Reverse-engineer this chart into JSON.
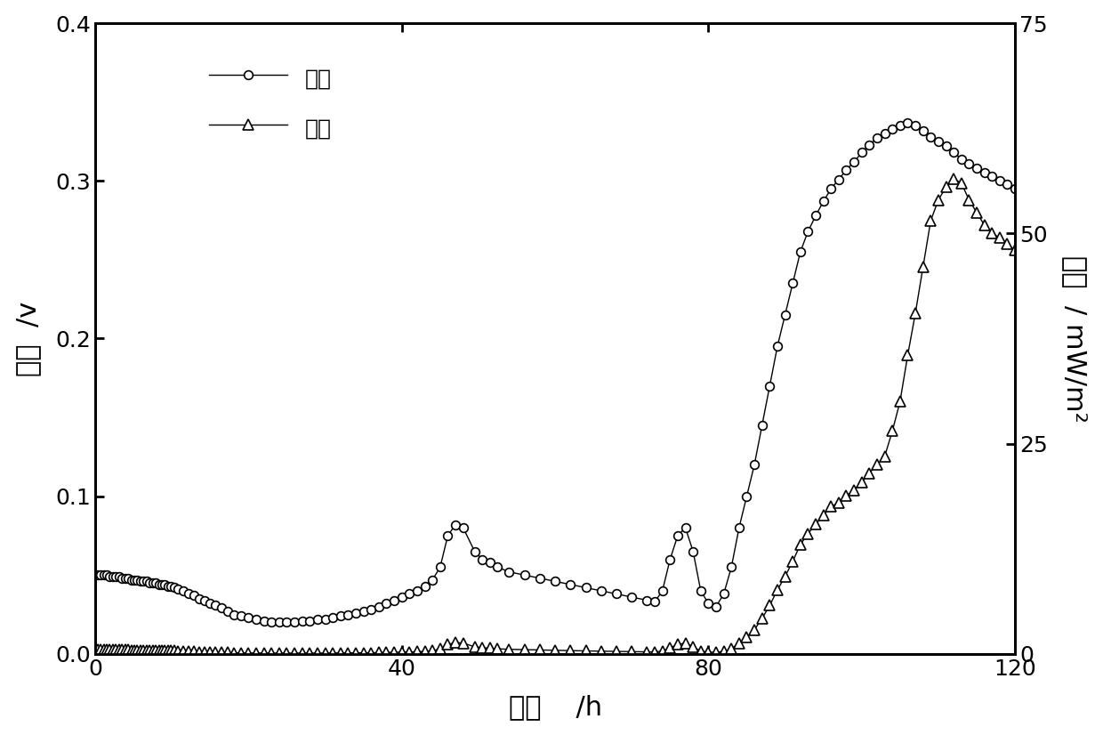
{
  "xlabel": "时间    /h",
  "ylabel_left": "电压  /v",
  "ylabel_right": "功率  / mW/m²",
  "legend_voltage": "电压",
  "legend_power": "功率",
  "xlim": [
    0,
    120
  ],
  "ylim_left": [
    0.0,
    0.4
  ],
  "ylim_right": [
    0,
    75
  ],
  "yticks_left": [
    0.0,
    0.1,
    0.2,
    0.3,
    0.4
  ],
  "yticks_right": [
    0,
    25,
    50,
    75
  ],
  "xticks": [
    0,
    40,
    80,
    120
  ],
  "voltage_time": [
    0.3,
    0.7,
    1.1,
    1.5,
    1.9,
    2.3,
    2.7,
    3.1,
    3.5,
    3.9,
    4.3,
    4.7,
    5.1,
    5.5,
    5.9,
    6.3,
    6.7,
    7.1,
    7.5,
    7.9,
    8.3,
    8.7,
    9.1,
    9.5,
    9.9,
    10.3,
    10.8,
    11.5,
    12.2,
    12.9,
    13.6,
    14.3,
    15.0,
    15.7,
    16.5,
    17.3,
    18.1,
    19.0,
    20.0,
    21.0,
    22.0,
    23.0,
    24.0,
    25.0,
    26.0,
    27.0,
    28.0,
    29.0,
    30.0,
    31.0,
    32.0,
    33.0,
    34.0,
    35.0,
    36.0,
    37.0,
    38.0,
    39.0,
    40.0,
    41.0,
    42.0,
    43.0,
    44.0,
    45.0,
    46.0,
    47.0,
    48.0,
    49.5,
    50.5,
    51.5,
    52.5,
    54.0,
    56.0,
    58.0,
    60.0,
    62.0,
    64.0,
    66.0,
    68.0,
    70.0,
    72.0,
    73.0,
    74.0,
    75.0,
    76.0,
    77.0,
    78.0,
    79.0,
    80.0,
    81.0,
    82.0,
    83.0,
    84.0,
    85.0,
    86.0,
    87.0,
    88.0,
    89.0,
    90.0,
    91.0,
    92.0,
    93.0,
    94.0,
    95.0,
    96.0,
    97.0,
    98.0,
    99.0,
    100.0,
    101.0,
    102.0,
    103.0,
    104.0,
    105.0,
    106.0,
    107.0,
    108.0,
    109.0,
    110.0,
    111.0,
    112.0,
    113.0,
    114.0,
    115.0,
    116.0,
    117.0,
    118.0,
    119.0,
    120.0
  ],
  "voltage_values": [
    0.05,
    0.05,
    0.05,
    0.05,
    0.049,
    0.049,
    0.049,
    0.049,
    0.048,
    0.048,
    0.048,
    0.047,
    0.047,
    0.047,
    0.046,
    0.046,
    0.046,
    0.045,
    0.045,
    0.045,
    0.044,
    0.044,
    0.044,
    0.043,
    0.043,
    0.042,
    0.041,
    0.04,
    0.038,
    0.037,
    0.035,
    0.034,
    0.032,
    0.031,
    0.029,
    0.027,
    0.025,
    0.024,
    0.023,
    0.022,
    0.021,
    0.02,
    0.02,
    0.02,
    0.02,
    0.021,
    0.021,
    0.022,
    0.022,
    0.023,
    0.024,
    0.025,
    0.026,
    0.027,
    0.028,
    0.03,
    0.032,
    0.034,
    0.036,
    0.038,
    0.04,
    0.043,
    0.047,
    0.055,
    0.075,
    0.082,
    0.08,
    0.065,
    0.06,
    0.058,
    0.055,
    0.052,
    0.05,
    0.048,
    0.046,
    0.044,
    0.042,
    0.04,
    0.038,
    0.036,
    0.034,
    0.033,
    0.04,
    0.06,
    0.075,
    0.08,
    0.065,
    0.04,
    0.032,
    0.03,
    0.038,
    0.055,
    0.08,
    0.1,
    0.12,
    0.145,
    0.17,
    0.195,
    0.215,
    0.235,
    0.255,
    0.268,
    0.278,
    0.287,
    0.295,
    0.301,
    0.307,
    0.312,
    0.318,
    0.323,
    0.327,
    0.33,
    0.333,
    0.335,
    0.337,
    0.335,
    0.332,
    0.328,
    0.325,
    0.322,
    0.318,
    0.314,
    0.311,
    0.308,
    0.305,
    0.303,
    0.3,
    0.298,
    0.295
  ],
  "power_time": [
    0.3,
    0.7,
    1.1,
    1.5,
    1.9,
    2.3,
    2.7,
    3.1,
    3.5,
    3.9,
    4.3,
    4.7,
    5.1,
    5.5,
    5.9,
    6.3,
    6.7,
    7.1,
    7.5,
    7.9,
    8.3,
    8.7,
    9.1,
    9.5,
    9.9,
    10.3,
    10.8,
    11.5,
    12.2,
    12.9,
    13.6,
    14.3,
    15.0,
    15.7,
    16.5,
    17.3,
    18.1,
    19.0,
    20.0,
    21.0,
    22.0,
    23.0,
    24.0,
    25.0,
    26.0,
    27.0,
    28.0,
    29.0,
    30.0,
    31.0,
    32.0,
    33.0,
    34.0,
    35.0,
    36.0,
    37.0,
    38.0,
    39.0,
    40.0,
    41.0,
    42.0,
    43.0,
    44.0,
    45.0,
    46.0,
    47.0,
    48.0,
    49.5,
    50.5,
    51.5,
    52.5,
    54.0,
    56.0,
    58.0,
    60.0,
    62.0,
    64.0,
    66.0,
    68.0,
    70.0,
    72.0,
    73.0,
    74.0,
    75.0,
    76.0,
    77.0,
    78.0,
    79.0,
    80.0,
    81.0,
    82.0,
    83.0,
    84.0,
    85.0,
    86.0,
    87.0,
    88.0,
    89.0,
    90.0,
    91.0,
    92.0,
    93.0,
    94.0,
    95.0,
    96.0,
    97.0,
    98.0,
    99.0,
    100.0,
    101.0,
    102.0,
    103.0,
    104.0,
    105.0,
    106.0,
    107.0,
    108.0,
    109.0,
    110.0,
    111.0,
    112.0,
    113.0,
    114.0,
    115.0,
    116.0,
    117.0,
    118.0,
    119.0,
    120.0
  ],
  "power_values": [
    0.5,
    0.5,
    0.5,
    0.5,
    0.48,
    0.48,
    0.47,
    0.47,
    0.46,
    0.46,
    0.46,
    0.44,
    0.44,
    0.44,
    0.42,
    0.42,
    0.42,
    0.4,
    0.4,
    0.4,
    0.38,
    0.38,
    0.38,
    0.36,
    0.36,
    0.35,
    0.33,
    0.32,
    0.29,
    0.27,
    0.24,
    0.23,
    0.2,
    0.19,
    0.17,
    0.15,
    0.13,
    0.11,
    0.1,
    0.09,
    0.09,
    0.08,
    0.08,
    0.08,
    0.08,
    0.09,
    0.09,
    0.09,
    0.09,
    0.1,
    0.1,
    0.11,
    0.12,
    0.12,
    0.13,
    0.14,
    0.16,
    0.18,
    0.2,
    0.23,
    0.25,
    0.29,
    0.35,
    0.6,
    1.1,
    1.35,
    1.28,
    0.84,
    0.72,
    0.67,
    0.6,
    0.54,
    0.5,
    0.46,
    0.42,
    0.39,
    0.35,
    0.32,
    0.29,
    0.26,
    0.23,
    0.22,
    0.32,
    0.72,
    1.12,
    1.28,
    0.84,
    0.32,
    0.2,
    0.18,
    0.29,
    0.6,
    1.28,
    2.0,
    2.88,
    4.2,
    5.76,
    7.6,
    9.2,
    11.0,
    13.0,
    14.3,
    15.4,
    16.5,
    17.5,
    18.0,
    18.8,
    19.5,
    20.4,
    21.5,
    22.5,
    23.5,
    26.5,
    30.0,
    35.5,
    40.5,
    46.0,
    51.5,
    54.0,
    55.5,
    56.5,
    56.0,
    54.0,
    52.5,
    51.0,
    50.0,
    49.5,
    48.8,
    48.0
  ]
}
